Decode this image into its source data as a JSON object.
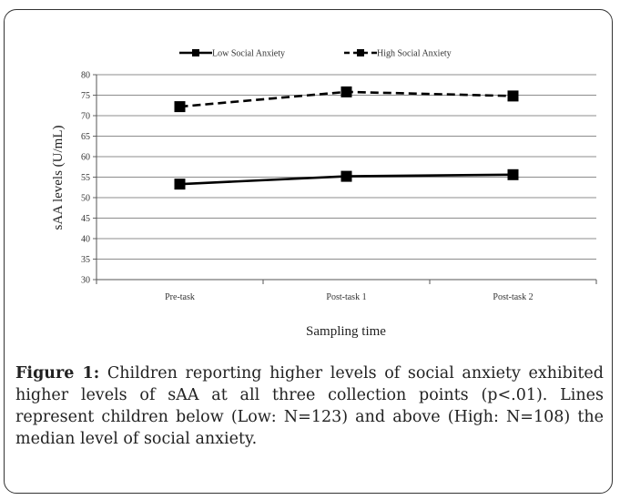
{
  "chart_data": {
    "type": "line",
    "title": "",
    "xlabel": "Sampling time",
    "ylabel": "sAA levels (U/mL)",
    "categories": [
      "Pre-task",
      "Post-task 1",
      "Post-task 2"
    ],
    "ylim": [
      30,
      80
    ],
    "yticks": [
      30,
      35,
      40,
      45,
      50,
      55,
      60,
      65,
      70,
      75,
      80
    ],
    "grid": true,
    "legend_position": "top",
    "series": [
      {
        "name": "Low Social Anxiety",
        "values": [
          53.3,
          55.2,
          55.6
        ],
        "style": "solid",
        "color": "#000000"
      },
      {
        "name": "High Social Anxiety",
        "values": [
          72.2,
          75.8,
          74.8
        ],
        "style": "dashed",
        "color": "#000000"
      }
    ]
  },
  "caption": {
    "label": "Figure 1:",
    "text": " Children reporting higher levels of social anxiety exhibited higher levels of sAA at all three collection points (p<.01). Lines represent children below (Low: N=123) and above (High: N=108) the median level of social anxiety."
  }
}
